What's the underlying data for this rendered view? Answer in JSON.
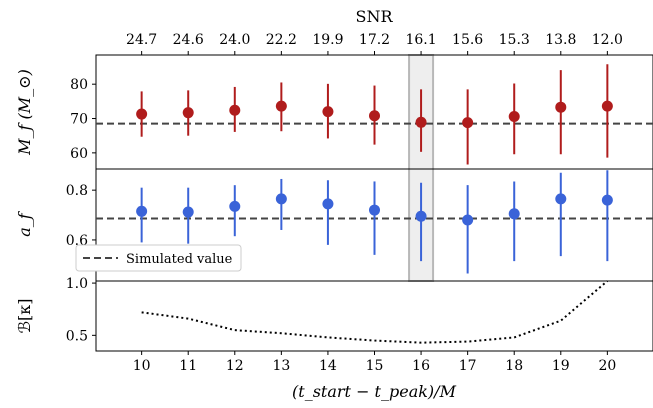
{
  "colors": {
    "panel1_series": "#b01c1c",
    "panel2_series": "#3a63d8",
    "reference_line": "#444444",
    "highlight_fill": "#eeeeee",
    "highlight_edge": "#b8b8b8"
  },
  "top_axis": {
    "label": "SNR",
    "ticks": [
      "24.7",
      "24.6",
      "24.0",
      "22.2",
      "19.9",
      "17.2",
      "16.1",
      "15.6",
      "15.3",
      "13.8",
      "12.0"
    ]
  },
  "x_axis": {
    "label": "(t_start − t_peak)/M",
    "ticks": [
      "10",
      "11",
      "12",
      "13",
      "14",
      "15",
      "16",
      "17",
      "18",
      "19",
      "20"
    ]
  },
  "legend": {
    "entries": [
      "Simulated value"
    ],
    "location": "lower-left of middle panel"
  },
  "chart_data": [
    {
      "type": "scatter",
      "panel": "top",
      "ylabel": "M_f (M_⊙)",
      "x": [
        10,
        11,
        12,
        13,
        14,
        15,
        16,
        17,
        18,
        19,
        20
      ],
      "xlim": [
        9.02,
        20.98
      ],
      "y": [
        71.3,
        71.7,
        72.4,
        73.6,
        72.0,
        70.8,
        68.9,
        68.8,
        70.6,
        73.3,
        73.6
      ],
      "y_lower": [
        64.7,
        65.0,
        66.1,
        66.3,
        64.2,
        62.4,
        60.3,
        56.6,
        59.6,
        59.6,
        58.6
      ],
      "y_upper": [
        77.9,
        78.2,
        79.2,
        80.5,
        80.1,
        79.6,
        78.5,
        78.5,
        80.2,
        84.1,
        85.8
      ],
      "reference": 68.5,
      "ylim": [
        55.3,
        88.5
      ],
      "yticks": [
        60,
        70,
        80
      ],
      "highlight_x": 16
    },
    {
      "type": "scatter",
      "panel": "middle",
      "ylabel": "a_f",
      "x": [
        10,
        11,
        12,
        13,
        14,
        15,
        16,
        17,
        18,
        19,
        20
      ],
      "y": [
        0.715,
        0.712,
        0.735,
        0.765,
        0.745,
        0.72,
        0.695,
        0.68,
        0.705,
        0.765,
        0.76
      ],
      "y_lower": [
        0.59,
        0.585,
        0.615,
        0.64,
        0.58,
        0.54,
        0.515,
        0.465,
        0.515,
        0.535,
        0.515
      ],
      "y_upper": [
        0.81,
        0.81,
        0.82,
        0.845,
        0.84,
        0.835,
        0.83,
        0.82,
        0.835,
        0.87,
        0.88
      ],
      "reference": 0.686,
      "ylim": [
        0.435,
        0.885
      ],
      "yticks": [
        0.6,
        0.8
      ],
      "ytick_labels": [
        "0.6",
        "0.8"
      ]
    },
    {
      "type": "line",
      "panel": "bottom",
      "ylabel": "ℬ[κ]",
      "x": [
        10,
        11,
        12,
        13,
        14,
        15,
        16,
        17,
        18,
        19,
        20
      ],
      "y": [
        0.72,
        0.66,
        0.55,
        0.52,
        0.48,
        0.45,
        0.43,
        0.44,
        0.48,
        0.64,
        1.02
      ],
      "ylim": [
        0.35,
        1.02
      ],
      "yticks": [
        0.5,
        1.0
      ],
      "ytick_labels": [
        "0.5",
        "1.0"
      ]
    }
  ]
}
